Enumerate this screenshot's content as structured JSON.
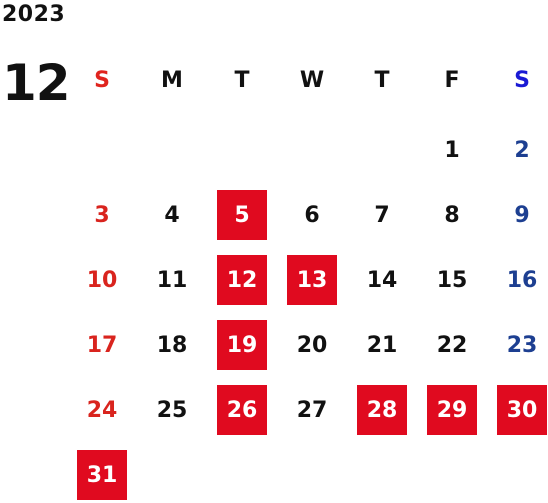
{
  "calendar": {
    "year": "2023",
    "month": "12",
    "weekday_headers": [
      "S",
      "M",
      "T",
      "W",
      "T",
      "F",
      "S"
    ],
    "weeks": [
      [
        {
          "day": "",
          "highlighted": false
        },
        {
          "day": "",
          "highlighted": false
        },
        {
          "day": "",
          "highlighted": false
        },
        {
          "day": "",
          "highlighted": false
        },
        {
          "day": "",
          "highlighted": false
        },
        {
          "day": "1",
          "highlighted": false
        },
        {
          "day": "2",
          "highlighted": false
        }
      ],
      [
        {
          "day": "3",
          "highlighted": false
        },
        {
          "day": "4",
          "highlighted": false
        },
        {
          "day": "5",
          "highlighted": true
        },
        {
          "day": "6",
          "highlighted": false
        },
        {
          "day": "7",
          "highlighted": false
        },
        {
          "day": "8",
          "highlighted": false
        },
        {
          "day": "9",
          "highlighted": false
        }
      ],
      [
        {
          "day": "10",
          "highlighted": false
        },
        {
          "day": "11",
          "highlighted": false
        },
        {
          "day": "12",
          "highlighted": true
        },
        {
          "day": "13",
          "highlighted": true
        },
        {
          "day": "14",
          "highlighted": false
        },
        {
          "day": "15",
          "highlighted": false
        },
        {
          "day": "16",
          "highlighted": false
        }
      ],
      [
        {
          "day": "17",
          "highlighted": false
        },
        {
          "day": "18",
          "highlighted": false
        },
        {
          "day": "19",
          "highlighted": true
        },
        {
          "day": "20",
          "highlighted": false
        },
        {
          "day": "21",
          "highlighted": false
        },
        {
          "day": "22",
          "highlighted": false
        },
        {
          "day": "23",
          "highlighted": false
        }
      ],
      [
        {
          "day": "24",
          "highlighted": false
        },
        {
          "day": "25",
          "highlighted": false
        },
        {
          "day": "26",
          "highlighted": true
        },
        {
          "day": "27",
          "highlighted": false
        },
        {
          "day": "28",
          "highlighted": true
        },
        {
          "day": "29",
          "highlighted": true
        },
        {
          "day": "30",
          "highlighted": true
        }
      ],
      [
        {
          "day": "31",
          "highlighted": true
        },
        {
          "day": "",
          "highlighted": false
        },
        {
          "day": "",
          "highlighted": false
        },
        {
          "day": "",
          "highlighted": false
        },
        {
          "day": "",
          "highlighted": false
        },
        {
          "day": "",
          "highlighted": false
        },
        {
          "day": "",
          "highlighted": false
        }
      ]
    ]
  },
  "colors": {
    "highlight_bg": "#e00a1f",
    "sunday_text": "#d9241e",
    "saturday_text": "#1d3f91",
    "sunday_header": "#e0241e",
    "saturday_header": "#1a1ad4",
    "weekday_text": "#111111"
  }
}
